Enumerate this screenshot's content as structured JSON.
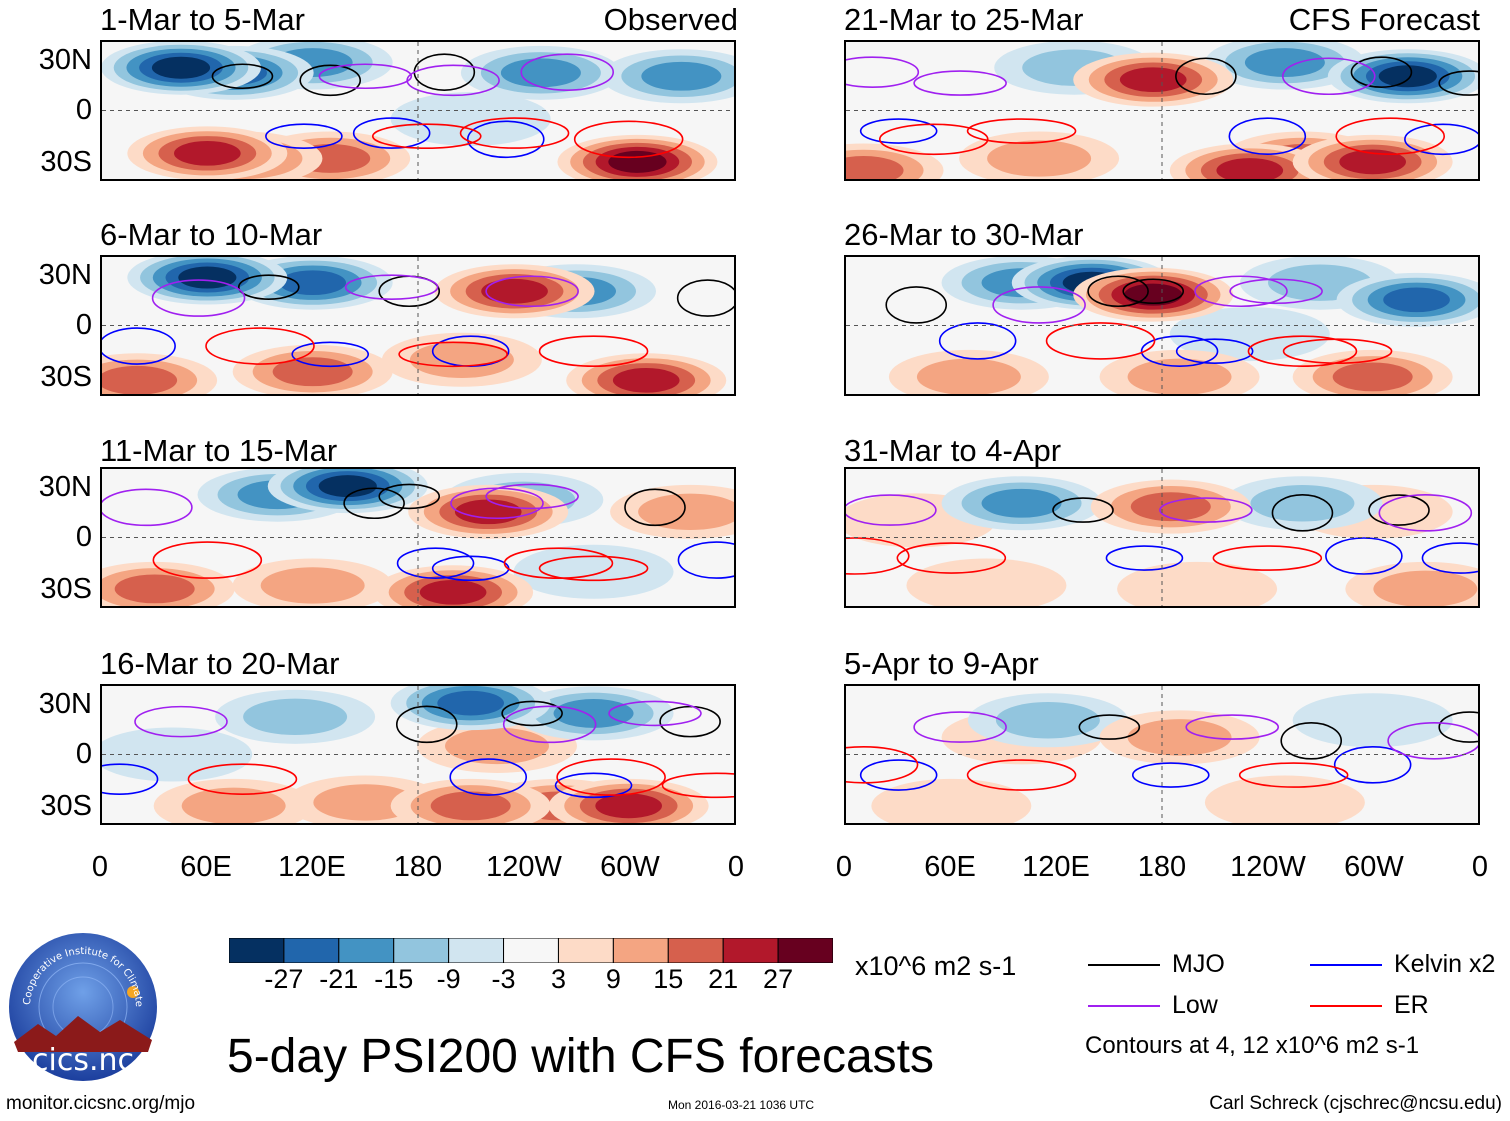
{
  "chart_data": {
    "type": "heatmap",
    "title": "5-day PSI200 with CFS forecasts",
    "variable": "PSI200",
    "units": "x10^6 m2 s-1",
    "y_ticks": [
      "30N",
      "0",
      "30S"
    ],
    "x_ticks": [
      "0",
      "60E",
      "120E",
      "180",
      "120W",
      "60W",
      "0"
    ],
    "lon_range": [
      0,
      360
    ],
    "lat_range": [
      -40,
      40
    ],
    "observed_label": "Observed",
    "forecast_label": "CFS Forecast",
    "panels": [
      {
        "title": "1-Mar to 5-Mar",
        "group": "Observed",
        "centers": [
          [
            45,
            25,
            -30
          ],
          [
            75,
            22,
            -26
          ],
          [
            120,
            28,
            -20
          ],
          [
            250,
            22,
            -20
          ],
          [
            330,
            20,
            -15
          ],
          [
            60,
            -25,
            25
          ],
          [
            80,
            -28,
            18
          ],
          [
            130,
            -28,
            16
          ],
          [
            305,
            -30,
            30
          ],
          [
            210,
            -5,
            -8
          ]
        ]
      },
      {
        "title": "6-Mar to 10-Mar",
        "group": "Observed",
        "centers": [
          [
            60,
            28,
            -28
          ],
          [
            120,
            25,
            -26
          ],
          [
            270,
            20,
            -18
          ],
          [
            235,
            20,
            22
          ],
          [
            20,
            -32,
            20
          ],
          [
            120,
            -27,
            18
          ],
          [
            310,
            -32,
            26
          ],
          [
            205,
            -20,
            10
          ]
        ]
      },
      {
        "title": "11-Mar to 15-Mar",
        "group": "Observed",
        "centers": [
          [
            140,
            30,
            -30
          ],
          [
            100,
            25,
            -20
          ],
          [
            240,
            22,
            -14
          ],
          [
            220,
            15,
            24
          ],
          [
            335,
            15,
            14
          ],
          [
            200,
            -32,
            24
          ],
          [
            30,
            -30,
            15
          ],
          [
            120,
            -28,
            12
          ],
          [
            280,
            -20,
            -8
          ]
        ]
      },
      {
        "title": "16-Mar to 20-Mar",
        "group": "Observed",
        "centers": [
          [
            210,
            30,
            -24
          ],
          [
            280,
            24,
            -18
          ],
          [
            110,
            22,
            -14
          ],
          [
            40,
            0,
            -8
          ],
          [
            225,
            5,
            12
          ],
          [
            210,
            -30,
            20
          ],
          [
            300,
            -30,
            22
          ],
          [
            260,
            -30,
            18
          ],
          [
            75,
            -30,
            14
          ],
          [
            150,
            -28,
            12
          ]
        ]
      },
      {
        "title": "21-Mar to 25-Mar",
        "group": "CFS Forecast",
        "centers": [
          [
            320,
            20,
            -28
          ],
          [
            250,
            28,
            -18
          ],
          [
            130,
            25,
            -14
          ],
          [
            175,
            18,
            24
          ],
          [
            230,
            -35,
            22
          ],
          [
            300,
            -30,
            26
          ],
          [
            260,
            -28,
            20
          ],
          [
            10,
            -35,
            20
          ],
          [
            110,
            -28,
            10
          ]
        ]
      },
      {
        "title": "26-Mar to 30-Mar",
        "group": "CFS Forecast",
        "centers": [
          [
            140,
            25,
            -28
          ],
          [
            100,
            25,
            -18
          ],
          [
            325,
            15,
            -22
          ],
          [
            270,
            25,
            -14
          ],
          [
            175,
            18,
            30
          ],
          [
            300,
            -30,
            16
          ],
          [
            70,
            -30,
            12
          ],
          [
            190,
            -30,
            10
          ],
          [
            230,
            -5,
            -6
          ]
        ]
      },
      {
        "title": "31-Mar to 4-Apr",
        "group": "CFS Forecast",
        "centers": [
          [
            100,
            20,
            -16
          ],
          [
            260,
            20,
            -12
          ],
          [
            185,
            18,
            16
          ],
          [
            40,
            10,
            8
          ],
          [
            300,
            15,
            8
          ],
          [
            200,
            -30,
            8
          ],
          [
            80,
            -28,
            6
          ],
          [
            330,
            -30,
            10
          ]
        ]
      },
      {
        "title": "5-Apr to 9-Apr",
        "group": "CFS Forecast",
        "centers": [
          [
            115,
            20,
            -12
          ],
          [
            300,
            20,
            -8
          ],
          [
            190,
            10,
            12
          ],
          [
            100,
            10,
            6
          ],
          [
            250,
            -28,
            8
          ],
          [
            60,
            -30,
            6
          ]
        ]
      }
    ],
    "colorbar": {
      "levels": [
        "-27",
        "-21",
        "-15",
        "-9",
        "-3",
        "3",
        "9",
        "15",
        "21",
        "27"
      ],
      "colors": [
        "#053061",
        "#2166ac",
        "#4393c3",
        "#92c5de",
        "#d1e5f0",
        "#f7f7f7",
        "#fddbc7",
        "#f4a582",
        "#d6604d",
        "#b2182b",
        "#67001f"
      ]
    },
    "legend": [
      {
        "label": "MJO",
        "color": "#000000"
      },
      {
        "label": "Kelvin x2",
        "color": "#0000ff"
      },
      {
        "label": "Low",
        "color": "#a020f0"
      },
      {
        "label": "ER",
        "color": "#ff0000"
      }
    ],
    "contour_note": "Contours at 4, 12 x10^6 m2 s-1"
  },
  "logo": {
    "name": "cics.nc",
    "arc_text": "Cooperative Institute for Climate and Satellites"
  },
  "footer": {
    "url": "monitor.cicsnc.org/mjo",
    "timestamp": "Mon 2016-03-21 1036 UTC",
    "author": "Carl Schreck (cjschrec@ncsu.edu)"
  }
}
